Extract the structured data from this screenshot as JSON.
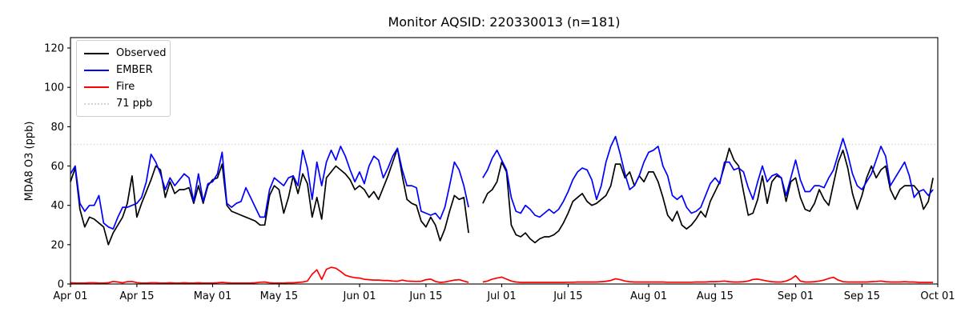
{
  "title": "Monitor AQSID: 220330013 (n=181)",
  "ylabel": "MDA8 O3 (ppb)",
  "legend": {
    "items": [
      {
        "label": "Observed",
        "color": "#000000",
        "style": "solid"
      },
      {
        "label": "EMBER",
        "color": "#0000ff",
        "style": "solid"
      },
      {
        "label": "Fire",
        "color": "#ff0000",
        "style": "solid"
      },
      {
        "label": "71 ppb",
        "color": "#d3d3d3",
        "style": "dotted"
      }
    ]
  },
  "chart_data": {
    "type": "line",
    "title": "Monitor AQSID: 220330013 (n=181)",
    "xlabel": "",
    "ylabel": "MDA8 O3 (ppb)",
    "n_points": 181,
    "x_start_date": "Apr 01",
    "x_end_date": "Oct 01",
    "n_days_axis": 183,
    "missing_dates": [
      "Jun 25",
      "Jun 26"
    ],
    "grid": false,
    "legend_position": "upper left",
    "ylim": [
      0,
      125.3
    ],
    "y_ticks": [
      0,
      20,
      40,
      60,
      80,
      100,
      120
    ],
    "x_ticks": [
      {
        "label": "Apr 01",
        "day": 0
      },
      {
        "label": "Apr 15",
        "day": 14
      },
      {
        "label": "May 01",
        "day": 30
      },
      {
        "label": "May 15",
        "day": 44
      },
      {
        "label": "Jun 01",
        "day": 61
      },
      {
        "label": "Jun 15",
        "day": 75
      },
      {
        "label": "Jul 01",
        "day": 91
      },
      {
        "label": "Jul 15",
        "day": 105
      },
      {
        "label": "Aug 01",
        "day": 122
      },
      {
        "label": "Aug 15",
        "day": 136
      },
      {
        "label": "Sep 01",
        "day": 153
      },
      {
        "label": "Sep 15",
        "day": 167
      },
      {
        "label": "Oct 01",
        "day": 183
      }
    ],
    "threshold_line": {
      "value": 71,
      "label": "71 ppb",
      "color": "#d3d3d3",
      "style": "dotted"
    },
    "series": [
      {
        "name": "Observed",
        "color": "#000000",
        "values": [
          52,
          59,
          38,
          29,
          34,
          33,
          31,
          29,
          20,
          26,
          30,
          34,
          41,
          55,
          34,
          41,
          47,
          53,
          60,
          58,
          44,
          52,
          46,
          48,
          48,
          49,
          41,
          50,
          41,
          50,
          53,
          54,
          61,
          40,
          37,
          36,
          35,
          34,
          33,
          32,
          30,
          30,
          45,
          50,
          48,
          36,
          44,
          55,
          46,
          56,
          51,
          34,
          44,
          33,
          54,
          57,
          60,
          58,
          56,
          53,
          48,
          50,
          48,
          44,
          47,
          43,
          49,
          55,
          62,
          69,
          55,
          43,
          41,
          40,
          32,
          29,
          34,
          30,
          22,
          28,
          37,
          45,
          43,
          44,
          26,
          null,
          null,
          41,
          46,
          48,
          52,
          62,
          57,
          30,
          25,
          24,
          26,
          23,
          21,
          23,
          24,
          24,
          25,
          27,
          31,
          36,
          42,
          44,
          46,
          42,
          40,
          41,
          43,
          45,
          50,
          61,
          61,
          54,
          57,
          50,
          55,
          52,
          57,
          57,
          52,
          44,
          35,
          32,
          37,
          30,
          28,
          30,
          33,
          37,
          34,
          42,
          47,
          52,
          60,
          69,
          63,
          60,
          47,
          35,
          36,
          43,
          55,
          41,
          52,
          55,
          54,
          42,
          52,
          54,
          44,
          38,
          37,
          41,
          48,
          43,
          40,
          51,
          62,
          68,
          59,
          46,
          38,
          45,
          54,
          60,
          54,
          58,
          60,
          48,
          43,
          48,
          50,
          50,
          50,
          47,
          38,
          42,
          54
        ]
      },
      {
        "name": "EMBER",
        "color": "#0000ff",
        "values": [
          56,
          60,
          41,
          37,
          40,
          40,
          45,
          31,
          29,
          28,
          34,
          39,
          39,
          40,
          41,
          44,
          52,
          66,
          62,
          56,
          48,
          54,
          50,
          53,
          56,
          54,
          42,
          56,
          42,
          51,
          52,
          56,
          67,
          41,
          39,
          41,
          42,
          49,
          44,
          39,
          34,
          34,
          48,
          54,
          52,
          50,
          54,
          55,
          50,
          68,
          59,
          43,
          62,
          50,
          62,
          68,
          63,
          70,
          65,
          58,
          52,
          57,
          51,
          60,
          65,
          63,
          54,
          59,
          65,
          69,
          58,
          50,
          50,
          49,
          37,
          36,
          35,
          36,
          33,
          39,
          50,
          62,
          58,
          50,
          39,
          null,
          null,
          54,
          58,
          64,
          68,
          63,
          58,
          44,
          37,
          36,
          40,
          38,
          35,
          34,
          36,
          38,
          36,
          38,
          42,
          47,
          53,
          57,
          59,
          58,
          53,
          43,
          50,
          62,
          70,
          75,
          66,
          56,
          48,
          50,
          55,
          62,
          67,
          68,
          70,
          60,
          55,
          45,
          43,
          45,
          39,
          36,
          37,
          39,
          45,
          51,
          54,
          51,
          62,
          62,
          58,
          59,
          57,
          49,
          43,
          52,
          60,
          52,
          55,
          56,
          54,
          45,
          54,
          63,
          53,
          47,
          47,
          50,
          50,
          49,
          54,
          58,
          66,
          74,
          66,
          56,
          50,
          48,
          52,
          56,
          63,
          70,
          65,
          50,
          54,
          58,
          62,
          55,
          44,
          47,
          48,
          45,
          48
        ]
      },
      {
        "name": "Fire",
        "color": "#ff0000",
        "values": [
          0.6,
          0.5,
          0.5,
          0.5,
          0.6,
          0.6,
          0.5,
          0.5,
          0.6,
          1.3,
          1.0,
          0.6,
          1.2,
          1.3,
          0.7,
          0.5,
          0.5,
          0.6,
          0.6,
          0.5,
          0.5,
          0.6,
          0.5,
          0.5,
          0.6,
          0.5,
          0.5,
          0.6,
          0.5,
          0.5,
          0.5,
          0.6,
          0.8,
          0.6,
          0.5,
          0.5,
          0.5,
          0.5,
          0.5,
          0.6,
          0.9,
          1.0,
          0.6,
          0.5,
          0.5,
          0.5,
          0.6,
          0.6,
          0.8,
          1.0,
          1.5,
          5.0,
          7.2,
          2.3,
          7.5,
          8.5,
          8.0,
          6.4,
          4.5,
          3.7,
          3.2,
          3.0,
          2.4,
          2.2,
          2.0,
          2.0,
          1.8,
          1.8,
          1.5,
          1.4,
          2.0,
          1.5,
          1.4,
          1.3,
          1.4,
          2.2,
          2.5,
          1.3,
          0.8,
          1.0,
          1.5,
          2.0,
          2.2,
          1.5,
          0.8,
          null,
          null,
          1.0,
          1.5,
          2.5,
          3.0,
          3.5,
          2.5,
          1.5,
          1.0,
          0.8,
          0.8,
          0.8,
          0.8,
          0.8,
          0.8,
          0.8,
          0.8,
          0.8,
          0.8,
          0.9,
          0.9,
          1.0,
          1.0,
          1.0,
          1.0,
          1.0,
          1.2,
          1.4,
          1.8,
          2.7,
          2.2,
          1.5,
          1.2,
          1.0,
          1.0,
          1.0,
          1.0,
          1.0,
          1.0,
          1.0,
          0.9,
          0.9,
          0.9,
          0.9,
          0.9,
          0.9,
          1.0,
          1.0,
          1.0,
          1.2,
          1.2,
          1.3,
          1.5,
          1.2,
          1.0,
          1.0,
          1.2,
          1.5,
          2.3,
          2.5,
          2.0,
          1.5,
          1.2,
          1.0,
          1.0,
          1.5,
          2.5,
          4.2,
          1.5,
          1.0,
          1.0,
          1.2,
          1.5,
          2.0,
          2.8,
          3.4,
          2.0,
          1.2,
          1.0,
          1.0,
          1.0,
          1.0,
          1.0,
          1.2,
          1.3,
          1.5,
          1.2,
          1.0,
          1.0,
          1.0,
          1.2,
          1.0,
          1.0,
          0.8,
          0.8,
          0.8,
          0.8
        ]
      }
    ]
  }
}
